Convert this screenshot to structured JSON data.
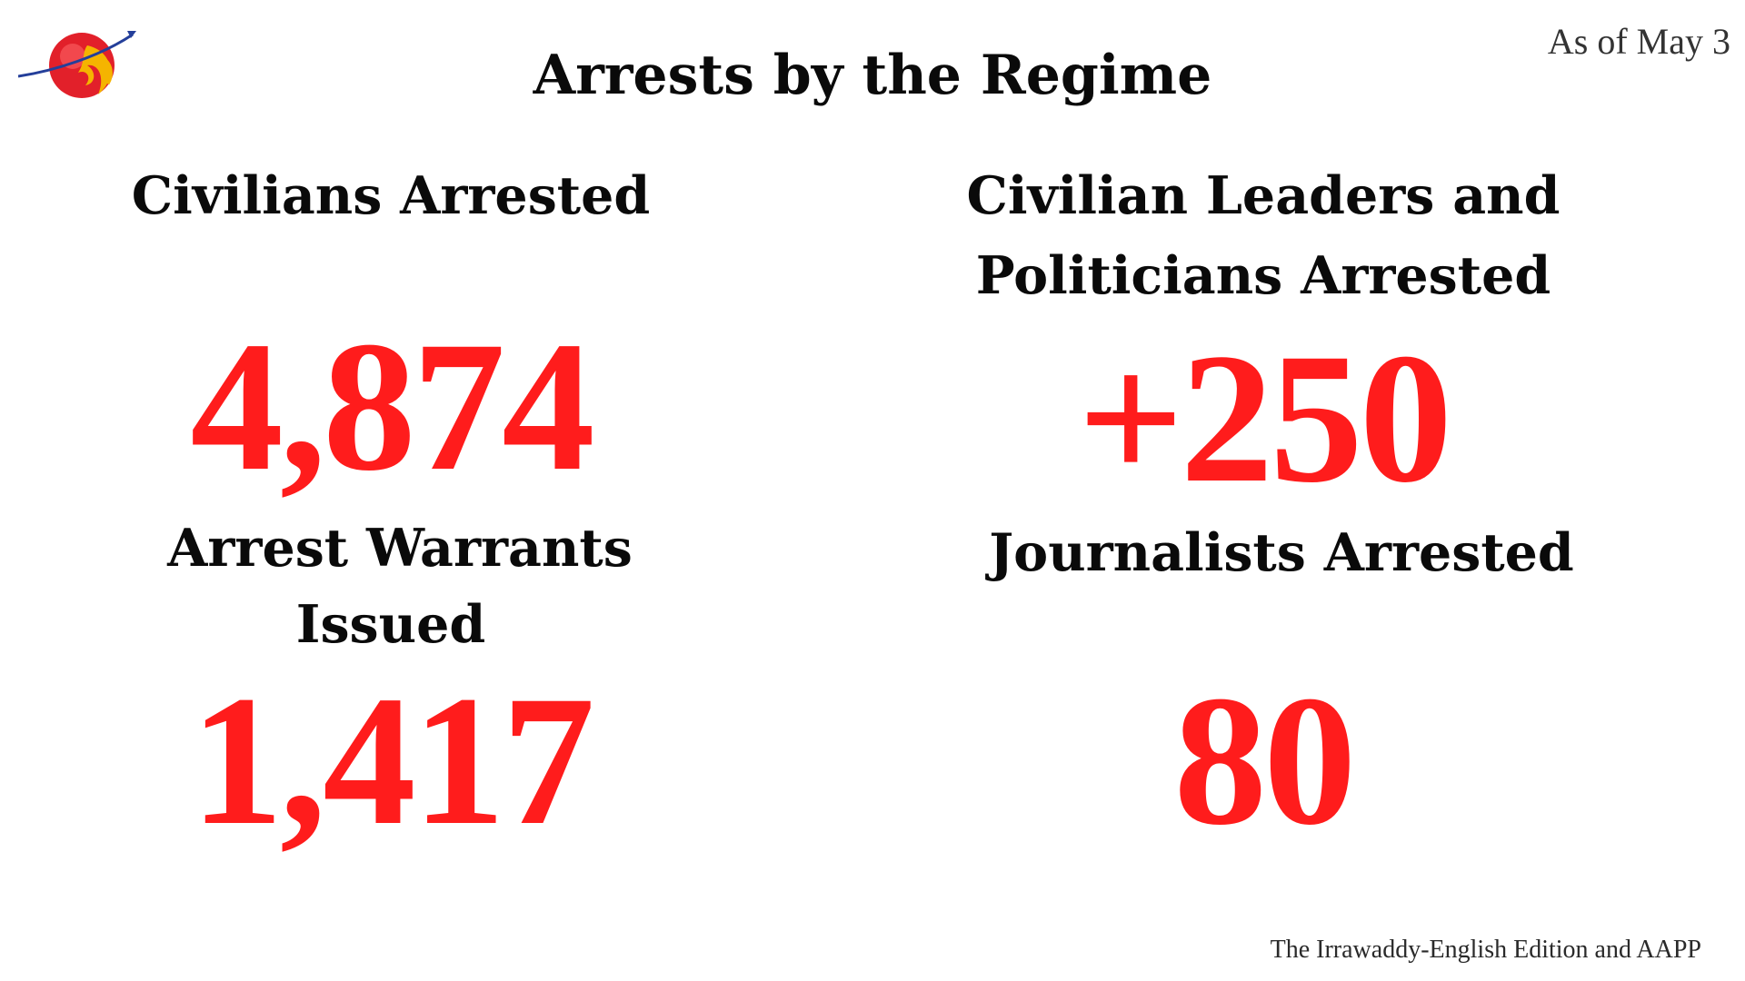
{
  "header": {
    "title": "Arrests by the Regime",
    "date": "As of May 3"
  },
  "stats": {
    "civilians": {
      "label": "Civilians Arrested",
      "value": "4,874"
    },
    "leaders": {
      "label_line1": "Civilian Leaders and",
      "label_line2": "Politicians Arrested",
      "value": "+250"
    },
    "warrants": {
      "label_line1": "Arrest Warrants",
      "label_line2": "Issued",
      "value": "1,417"
    },
    "journalists": {
      "label": "Journalists Arrested",
      "value": "80"
    }
  },
  "footer": {
    "credit": "The Irrawaddy-English Edition and AAPP"
  },
  "colors": {
    "accent_red": "#ff1c1c",
    "logo_red": "#e2202a",
    "logo_gold": "#f5b400",
    "logo_blue": "#243f9a"
  },
  "icons": {
    "logo": "irrawaddy-logo-icon"
  }
}
